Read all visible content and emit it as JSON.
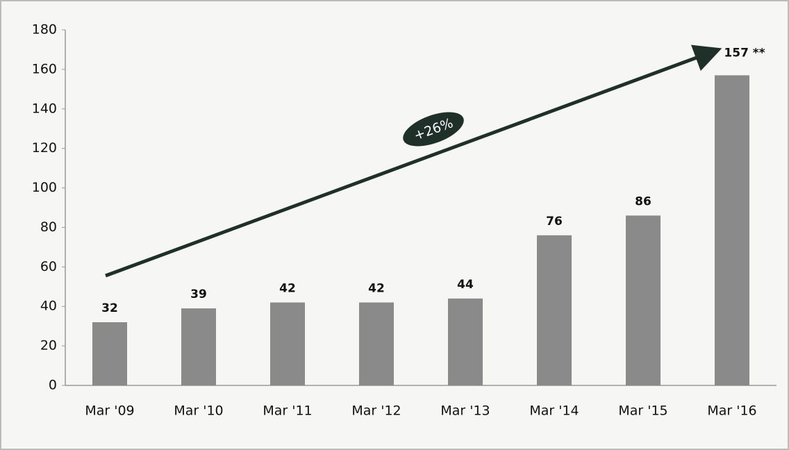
{
  "chart_data": {
    "type": "bar",
    "categories": [
      "Mar '09",
      "Mar '10",
      "Mar '11",
      "Mar '12",
      "Mar '13",
      "Mar '14",
      "Mar '15",
      "Mar '16"
    ],
    "values": [
      32,
      39,
      42,
      42,
      44,
      76,
      86,
      157
    ],
    "value_labels": [
      "32",
      "39",
      "42",
      "42",
      "44",
      "76",
      "86",
      "157 **"
    ],
    "color": "#8a8a8a",
    "ylim": [
      0,
      180
    ],
    "yticks": [
      0,
      20,
      40,
      60,
      80,
      100,
      120,
      140,
      160,
      180
    ],
    "grid": false,
    "annotations": [
      "+26%"
    ]
  }
}
